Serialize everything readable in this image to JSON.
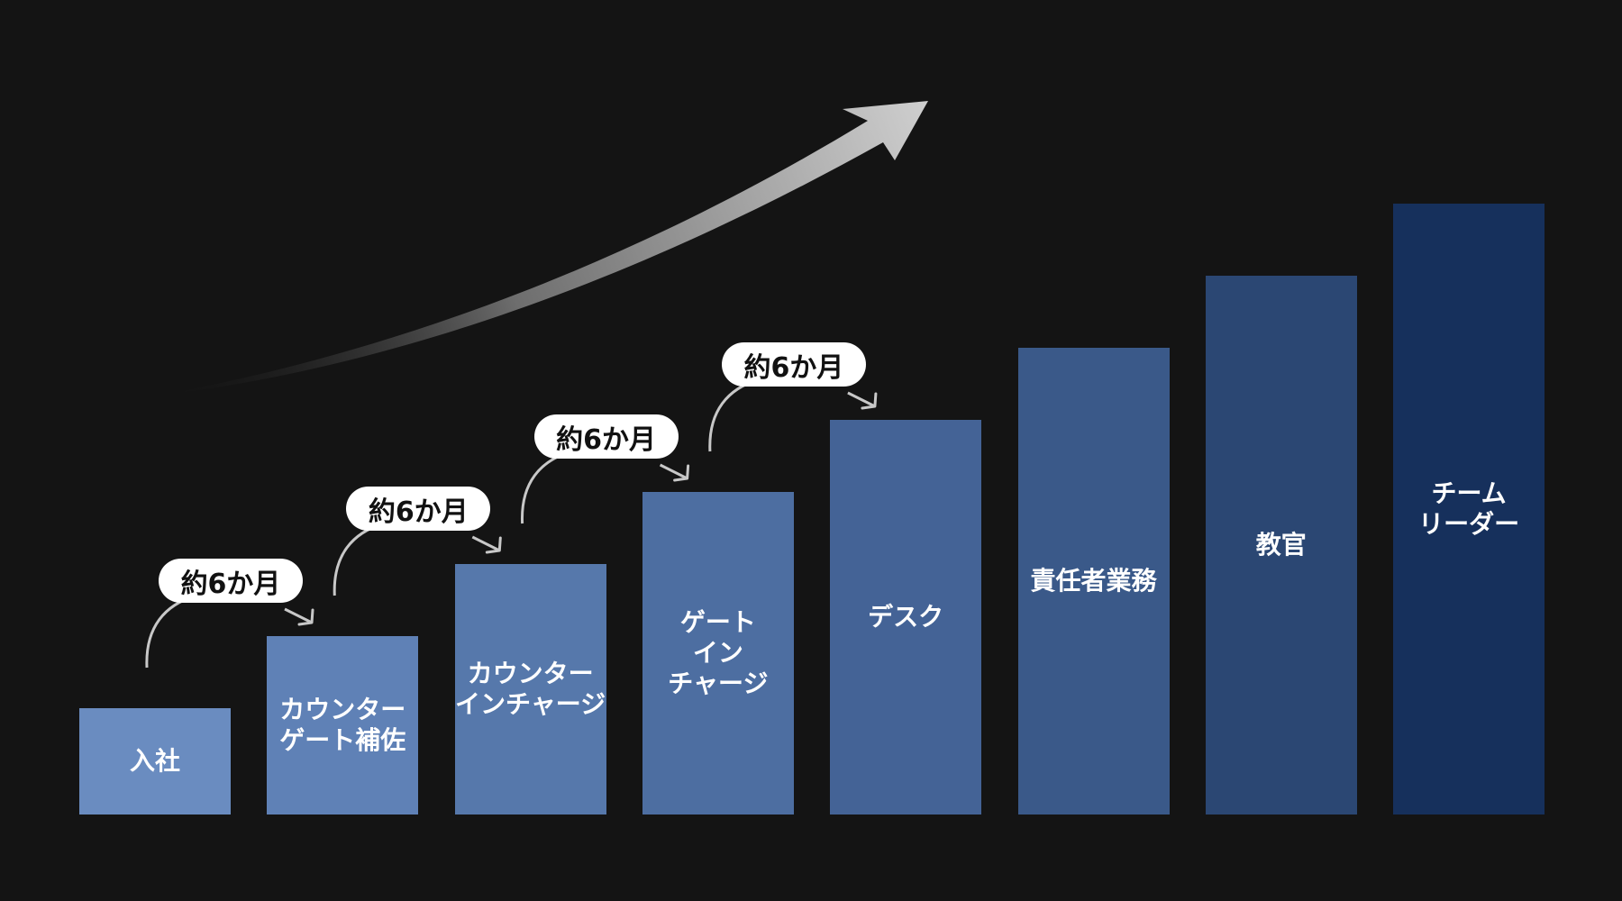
{
  "steps": [
    {
      "label": "入社",
      "color": "#6a8cc0"
    },
    {
      "label": "カウンター\nゲート補佐",
      "color": "#5f81b6"
    },
    {
      "label": "カウンター\nインチャージ",
      "color": "#5678ab"
    },
    {
      "label": "ゲート\nイン\nチャージ",
      "color": "#4d6ea1"
    },
    {
      "label": "デスク",
      "color": "#446396"
    },
    {
      "label": "責任者業務",
      "color": "#3a5989"
    },
    {
      "label": "教官",
      "color": "#2b4773"
    },
    {
      "label": "チーム\nリーダー",
      "color": "#16305c"
    }
  ],
  "intervals": [
    {
      "label": "約6か月"
    },
    {
      "label": "約6か月"
    },
    {
      "label": "約6か月"
    },
    {
      "label": "約6か月"
    }
  ],
  "colors": {
    "background": "#141414",
    "growth_arrow": "#c8c8c8",
    "connector": "#c8c8c8",
    "pill": "#ffffff"
  },
  "icons": {
    "growth": "upward-curved-arrow-icon",
    "connector": "curved-arrow-icon"
  }
}
